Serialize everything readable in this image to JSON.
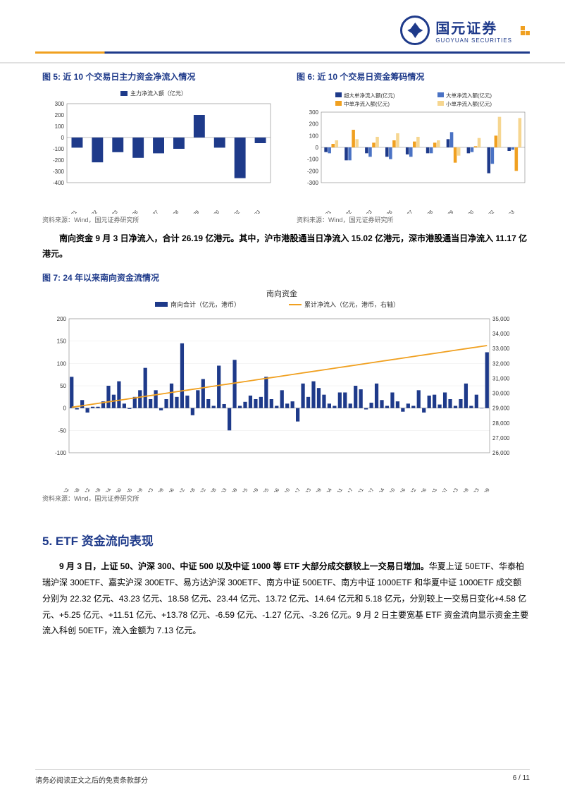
{
  "header": {
    "logo_cn": "国元证券",
    "logo_en": "GUOYUAN SECURITIES"
  },
  "fig5": {
    "title": "图 5: 近 10 个交易日主力资金净流入情况",
    "chart_label": "主力净流入额（亿元）",
    "source": "资料来源：Wind，国元证券研究所",
    "type": "bar",
    "bar_color": "#1e3a8a",
    "axis_color": "#808080",
    "grid_color": "#d0d0d0",
    "label_fontsize": 8,
    "ylim": [
      -400,
      300
    ],
    "ytick_step": 100,
    "categories": [
      "2024-08-21",
      "2024-08-22",
      "2024-08-23",
      "2024-08-26",
      "2024-08-27",
      "2024-08-28",
      "2024-08-29",
      "2024-08-30",
      "2024-09-02",
      "2024-09-03"
    ],
    "values": [
      -90,
      -220,
      -130,
      -180,
      -140,
      -100,
      200,
      -90,
      -360,
      -50
    ]
  },
  "fig6": {
    "title": "图 6: 近 10 个交易日资金筹码情况",
    "source": "资料来源：Wind，国元证券研究所",
    "type": "grouped-bar",
    "legend": {
      "items": [
        {
          "label": "超大单净流入额(亿元)",
          "color": "#1e3a8a"
        },
        {
          "label": "大单净流入额(亿元)",
          "color": "#4a72c4"
        },
        {
          "label": "中单净流入额(亿元)",
          "color": "#f0a020"
        },
        {
          "label": "小单净流入额(亿元)",
          "color": "#f6d690"
        }
      ]
    },
    "axis_color": "#808080",
    "label_fontsize": 8,
    "ylim": [
      -300,
      300
    ],
    "ytick_step": 100,
    "categories": [
      "2024-08-21",
      "2024-08-22",
      "2024-08-23",
      "2024-08-26",
      "2024-08-27",
      "2024-08-28",
      "2024-08-29",
      "2024-08-30",
      "2024-09-02",
      "2024-09-03"
    ],
    "series": {
      "超大单": [
        -40,
        -110,
        -50,
        -80,
        -60,
        -50,
        70,
        -50,
        -220,
        -30
      ],
      "大单": [
        -50,
        -110,
        -80,
        -100,
        -80,
        -50,
        130,
        -40,
        -140,
        -20
      ],
      "中单": [
        30,
        150,
        40,
        60,
        50,
        40,
        -130,
        10,
        100,
        -200
      ],
      "小单": [
        60,
        70,
        90,
        120,
        90,
        60,
        -70,
        80,
        260,
        250
      ]
    }
  },
  "southbound_text": {
    "line1_bold": "南向资金 9 月 3 日净流入，合计 26.19 亿港元。其中，沪市港股通当日净流入",
    "line2_bold": "15.02 亿港元，深市港股通当日净流入 11.17 亿港元。"
  },
  "fig7": {
    "title": "图 7: 24 年以来南向资金流情况",
    "chart_label": "南向资金",
    "source": "资料来源：Wind，国元证券研究所",
    "type": "bar-line",
    "legend": {
      "items": [
        {
          "label": "南向合计（亿元，港币）",
          "color": "#1e3a8a",
          "shape": "bar"
        },
        {
          "label": "累计净流入（亿元，港币，右轴）",
          "color": "#f0a020",
          "shape": "line"
        }
      ]
    },
    "axis_color": "#808080",
    "grid_color": "#e8e8e8",
    "label_fontsize": 8,
    "ylim_left": [
      -100,
      200
    ],
    "ytick_step_left": 50,
    "ylim_right": [
      26000,
      35000
    ],
    "ytick_step_right": 1000,
    "x_dates": [
      "2024-01-02",
      "2024-01-08",
      "2024-01-12",
      "2024-01-18",
      "2024-01-24",
      "2024-01-30",
      "2024-02-05",
      "2024-02-19",
      "2024-02-23",
      "2024-02-29",
      "2024-03-06",
      "2024-03-12",
      "2024-03-18",
      "2024-03-22",
      "2024-03-28",
      "2024-04-03",
      "2024-04-09",
      "2024-04-15",
      "2024-04-19",
      "2024-04-25",
      "2024-05-06",
      "2024-05-10",
      "2024-05-17",
      "2024-05-23",
      "2024-05-29",
      "2024-06-04",
      "2024-06-11",
      "2024-06-17",
      "2024-06-21",
      "2024-06-27",
      "2024-07-04",
      "2024-07-10",
      "2024-07-16",
      "2024-07-22",
      "2024-07-26",
      "2024-08-01",
      "2024-08-07",
      "2024-08-13",
      "2024-08-19",
      "2024-08-23",
      "2024-08-29"
    ],
    "bars_sample": [
      70,
      -3,
      18,
      -10,
      3,
      3,
      15,
      50,
      30,
      60,
      10,
      -2,
      25,
      40,
      90,
      20,
      40,
      -5,
      20,
      55,
      25,
      145,
      28,
      -16,
      40,
      65,
      20,
      5,
      95,
      9,
      -50,
      108,
      5,
      14,
      28,
      20,
      25,
      70,
      20,
      5,
      40,
      10,
      15,
      -30,
      55,
      25,
      60,
      45,
      30,
      10,
      5,
      35,
      35,
      10,
      50,
      42,
      -3,
      12,
      55,
      18,
      5,
      35,
      15,
      -8,
      10,
      5,
      40,
      -10,
      28,
      30,
      8,
      35,
      20,
      5,
      20,
      55,
      5,
      30,
      0,
      125
    ],
    "line_start": 29000,
    "line_end": 33200
  },
  "section5": {
    "heading": "5. ETF 资金流向表现",
    "text_bold1": "9 月 3 日，上证 50、沪深 300、中证 500 以及中证 1000 等 ETF 大部分成交额",
    "text_bold2": "较上一交易日增加。",
    "text_rest": "华夏上证 50ETF、华泰柏瑞沪深 300ETF、嘉实沪深 300ETF、易方达沪深 300ETF、南方中证 500ETF、南方中证 1000ETF 和华夏中证 1000ETF 成交额分别为 22.32 亿元、43.23 亿元、18.58 亿元、23.44 亿元、13.72 亿元、14.64 亿元和 5.18 亿元，分别较上一交易日变化+4.58 亿元、+5.25 亿元、+11.51 亿元、+13.78 亿元、-6.59 亿元、-1.27 亿元、-3.26 亿元。9 月 2 日主要宽基 ETF 资金流向显示资金主要流入科创 50ETF，流入金额为 7.13 亿元。"
  },
  "footer": {
    "disclaimer": "请务必阅读正文之后的免责条款部分",
    "page": "6 / 11"
  }
}
